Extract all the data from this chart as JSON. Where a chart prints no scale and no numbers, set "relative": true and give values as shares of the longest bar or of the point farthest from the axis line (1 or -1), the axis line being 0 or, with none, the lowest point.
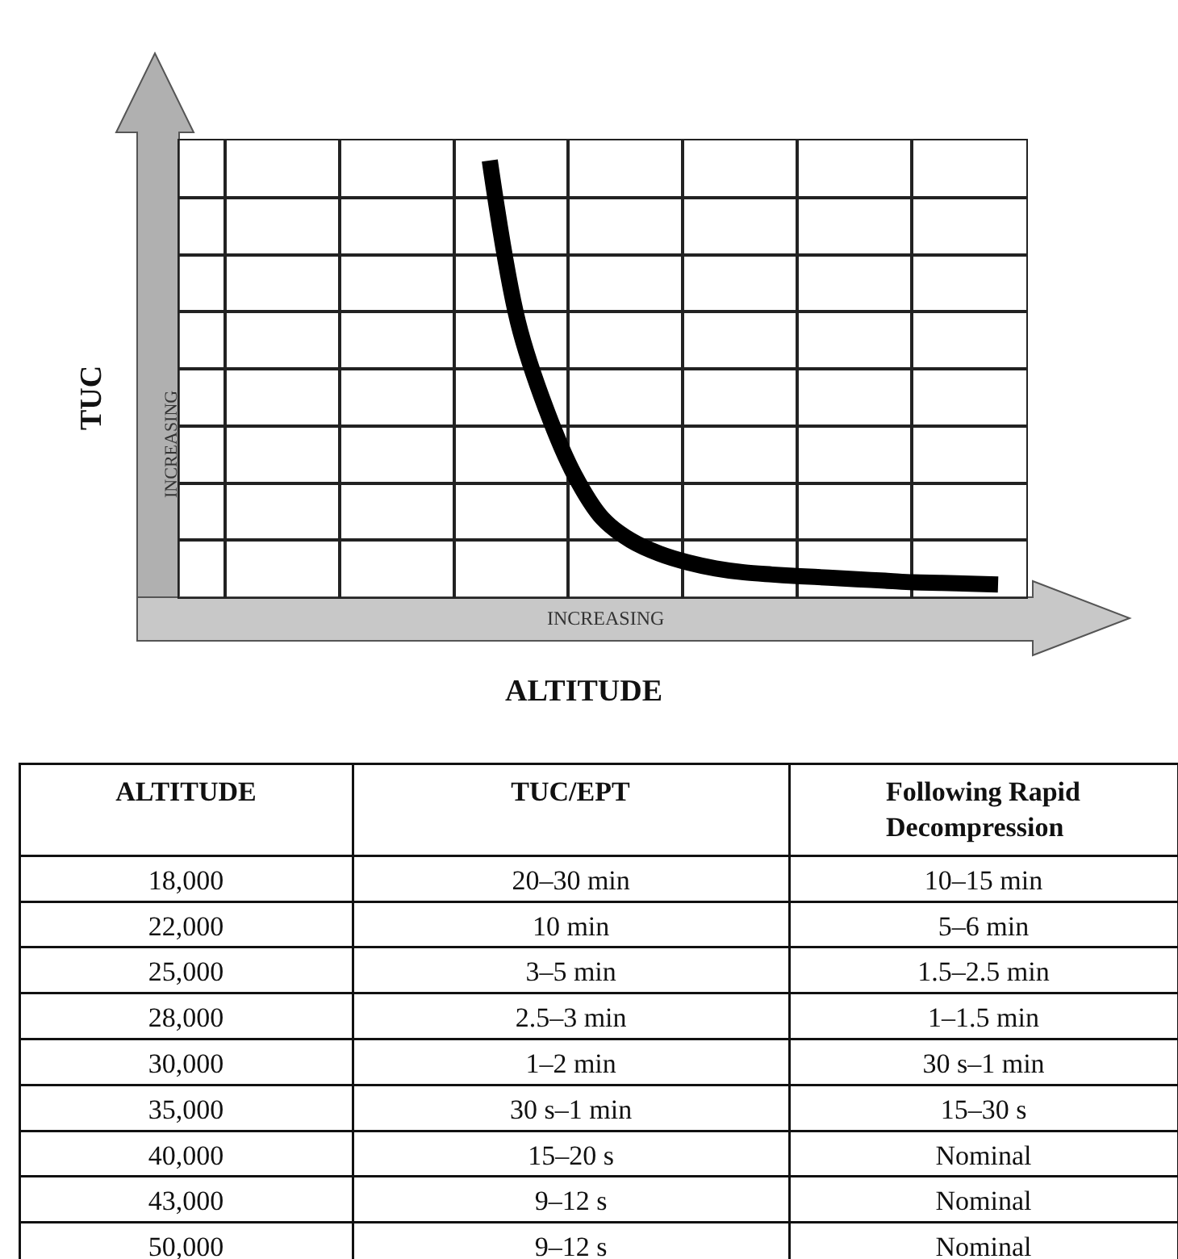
{
  "chart_data": [
    {
      "type": "line",
      "relative": true,
      "xlabel": "ALTITUDE",
      "ylabel": "TUC",
      "grid": true,
      "marker": "none",
      "line_style": "solid",
      "categories": [
        null,
        null,
        null,
        null,
        null,
        null,
        null,
        null,
        null,
        null,
        null,
        null,
        null,
        null,
        null,
        null,
        null,
        null,
        null,
        null,
        null,
        null,
        null,
        null,
        null,
        null,
        null,
        null,
        null,
        null,
        null
      ],
      "series": [
        {
          "color": "#000000",
          "values": [
            null,
            null,
            null,
            null,
            null,
            null,
            null,
            null,
            null,
            null,
            null,
            1.0,
            0.63,
            0.43,
            0.28,
            0.18,
            0.13,
            0.1,
            0.08,
            0.066,
            0.057,
            0.052,
            0.048,
            0.045,
            0.041,
            0.038,
            0.034,
            0.033,
            0.031,
            0.029,
            null
          ]
        }
      ],
      "annotations": [
        "INCREASING",
        "INCREASING"
      ]
    },
    {
      "type": "other",
      "annotations": [
        "ALTITUDE",
        "TUC/EPT",
        "Following Rapid\nDecompression",
        "18,000",
        "20–30 min",
        "10–15 min",
        "22,000",
        "10 min",
        "5–6 min",
        "25,000",
        "3–5 min",
        "1.5–2.5 min",
        "28,000",
        "2.5–3 min",
        "1–1.5 min",
        "30,000",
        "1–2 min",
        "30 s–1 min",
        "35,000",
        "30 s–1 min",
        "15–30 s",
        "40,000",
        "15–20 s",
        "Nominal",
        "43,000",
        "9–12 s",
        "Nominal",
        "50,000",
        "9–12 s",
        "Nominal"
      ]
    }
  ]
}
